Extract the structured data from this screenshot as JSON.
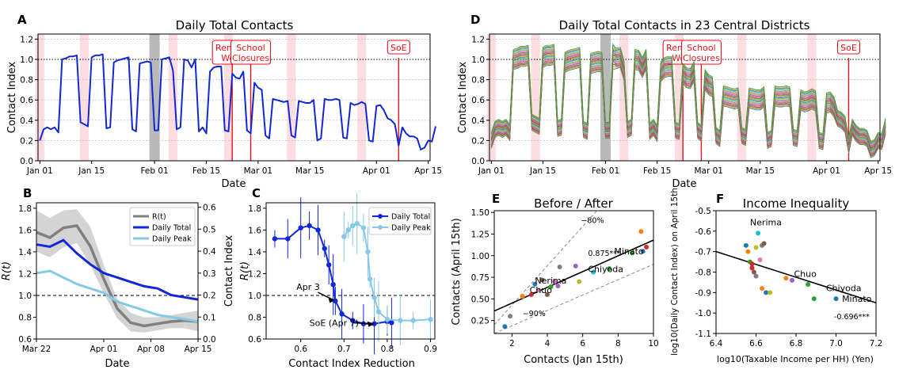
{
  "panels": {
    "A": {
      "letter": "A",
      "title": "Daily Total Contacts",
      "xlabel": "Date",
      "ylabel": "Contact Index"
    },
    "B": {
      "letter": "B",
      "xlabel": "Date",
      "ylabel": "R(t)",
      "ylabel_right": "Contact Index"
    },
    "C": {
      "letter": "C",
      "xlabel": "Contact Index Reduction",
      "ylabel": "R(t)"
    },
    "D": {
      "letter": "D",
      "title": "Daily Total Contacts in 23 Central Districts",
      "xlabel": "Date",
      "ylabel": "Contact Index"
    },
    "E": {
      "letter": "E",
      "title": "Before / After",
      "xlabel": "Contacts (Jan 15th)",
      "ylabel": "Contacts (April 15th)"
    },
    "F": {
      "letter": "F",
      "title": "Income Inequality",
      "xlabel": "log10(Taxable Income per HH) (Yen)",
      "ylabel": "log10(Daily Contact Index) on April 15th"
    }
  },
  "events": [
    {
      "label_line1": "Remote",
      "label_line2": "Work",
      "date_index": 52
    },
    {
      "label_line1": "School",
      "label_line2": "Closures",
      "date_index": 57
    },
    {
      "label_line1": "SoE",
      "label_line2": "",
      "date_index": 97
    }
  ],
  "date_ticks": [
    "Jan 01",
    "Jan 15",
    "Feb 01",
    "Feb 15",
    "Mar 01",
    "Mar 15",
    "Apr 01",
    "Apr 15"
  ],
  "date_tick_index": [
    0,
    14,
    31,
    45,
    59,
    73,
    91,
    105
  ],
  "shading": {
    "pink_index": [
      0,
      12,
      36,
      51,
      68,
      87
    ],
    "gray_index": 31
  },
  "chart_data": [
    {
      "id": "A",
      "type": "line",
      "title": "Daily Total Contacts",
      "xlabel": "Date",
      "ylabel": "Contact Index",
      "ylim": [
        0.0,
        1.25
      ],
      "yticks": [
        0.0,
        0.2,
        0.4,
        0.6,
        0.8,
        1.0,
        1.2
      ],
      "reference_line": 1.0,
      "series": [
        {
          "color": "#1028d8",
          "values": [
            0.2,
            0.31,
            0.33,
            0.31,
            0.33,
            0.28,
            1.0,
            1.01,
            1.03,
            1.03,
            1.04,
            0.38,
            0.36,
            0.34,
            1.02,
            1.04,
            1.04,
            1.05,
            0.32,
            0.33,
            0.97,
            0.99,
            1.0,
            1.01,
            1.02,
            0.31,
            0.29,
            0.96,
            0.97,
            0.98,
            0.97,
            0.3,
            0.3,
            1.0,
            1.01,
            1.02,
            0.89,
            0.31,
            0.33,
            1.0,
            0.99,
            0.92,
            1.0,
            0.29,
            0.33,
            0.27,
            0.88,
            0.92,
            0.93,
            0.93,
            0.3,
            0.29,
            0.86,
            0.82,
            0.81,
            0.88,
            0.3,
            0.27,
            0.77,
            0.72,
            0.7,
            0.25,
            0.22,
            0.61,
            0.6,
            0.59,
            0.58,
            0.59,
            0.25,
            0.23,
            0.59,
            0.58,
            0.57,
            0.57,
            0.6,
            0.2,
            0.22,
            0.61,
            0.6,
            0.6,
            0.61,
            0.6,
            0.23,
            0.22,
            0.57,
            0.55,
            0.56,
            0.58,
            0.56,
            0.2,
            0.19,
            0.54,
            0.55,
            0.5,
            0.42,
            0.4,
            0.36,
            0.15,
            0.33,
            0.27,
            0.24,
            0.24,
            0.22,
            0.11,
            0.13,
            0.2,
            0.19,
            0.34
          ]
        }
      ]
    },
    {
      "id": "D",
      "type": "line",
      "title": "Daily Total Contacts in 23 Central Districts",
      "xlabel": "Date",
      "ylabel": "Contact Index",
      "ylim": [
        0.0,
        1.25
      ],
      "yticks": [
        0.0,
        0.2,
        0.4,
        0.6,
        0.8,
        1.0,
        1.2
      ],
      "reference_line": 1.0,
      "series_count": 23
    },
    {
      "id": "B",
      "type": "line",
      "xlabel": "Date",
      "ylabel": "R(t)",
      "ylabel_right": "Contact Index",
      "ylim": [
        0.6,
        1.85
      ],
      "yticks": [
        0.6,
        0.8,
        1.0,
        1.2,
        1.4,
        1.6,
        1.8
      ],
      "y2lim": [
        0.0,
        0.62
      ],
      "y2ticks": [
        0.0,
        0.1,
        0.2,
        0.3,
        0.4,
        0.5,
        0.6
      ],
      "xticks": [
        "Mar 22",
        "Apr 01",
        "Apr 08",
        "Apr 15"
      ],
      "xtick_days": [
        0,
        10,
        17,
        24
      ],
      "reference_line": 1.0,
      "legend": [
        "R(t)",
        "Daily Total",
        "Daily Peak"
      ],
      "legend_position": "upper-right",
      "series": [
        {
          "name": "R(t)",
          "axis": "left",
          "color": "#808080",
          "x": [
            0,
            2,
            4,
            6,
            8,
            10,
            12,
            14,
            16,
            18,
            20,
            22,
            24
          ],
          "values": [
            1.58,
            1.53,
            1.62,
            1.64,
            1.45,
            1.15,
            0.88,
            0.75,
            0.72,
            0.74,
            0.76,
            0.77,
            0.76
          ],
          "band_upper": [
            1.78,
            1.71,
            1.78,
            1.79,
            1.63,
            1.28,
            0.97,
            0.84,
            0.8,
            0.8,
            0.82,
            0.84,
            0.86
          ],
          "band_lower": [
            1.4,
            1.35,
            1.44,
            1.48,
            1.28,
            1.02,
            0.79,
            0.67,
            0.66,
            0.68,
            0.7,
            0.7,
            0.67
          ]
        },
        {
          "name": "Daily Total",
          "axis": "right",
          "color": "#1028d8",
          "x": [
            0,
            2,
            4,
            6,
            8,
            10,
            12,
            14,
            16,
            18,
            20,
            22,
            24
          ],
          "values": [
            0.43,
            0.42,
            0.45,
            0.39,
            0.34,
            0.3,
            0.28,
            0.26,
            0.24,
            0.23,
            0.2,
            0.19,
            0.18
          ]
        },
        {
          "name": "Daily Peak",
          "axis": "right",
          "color": "#86c8e8",
          "x": [
            0,
            2,
            4,
            6,
            8,
            10,
            12,
            14,
            16,
            18,
            20,
            22,
            24
          ],
          "values": [
            0.3,
            0.31,
            0.28,
            0.25,
            0.23,
            0.21,
            0.17,
            0.15,
            0.13,
            0.11,
            0.1,
            0.09,
            0.08
          ]
        }
      ]
    },
    {
      "id": "C",
      "type": "line",
      "xlabel": "Contact Index Reduction",
      "ylabel": "R(t)",
      "xlim": [
        0.52,
        0.91
      ],
      "xticks": [
        0.6,
        0.7,
        0.8,
        0.9
      ],
      "ylim": [
        0.6,
        1.85
      ],
      "yticks": [
        0.6,
        0.8,
        1.0,
        1.2,
        1.4,
        1.6,
        1.8
      ],
      "reference_line": 1.0,
      "legend": [
        "Daily Total",
        "Daily Peak"
      ],
      "legend_position": "upper-right",
      "annotations": [
        {
          "text": "Apr 3",
          "x": 0.68,
          "y": 0.96
        },
        {
          "text": "SoE (Apr 7)",
          "x": 0.77,
          "y": 0.74
        }
      ],
      "series": [
        {
          "name": "Daily Total",
          "color": "#1028d8",
          "x": [
            0.54,
            0.57,
            0.6,
            0.62,
            0.64,
            0.655,
            0.665,
            0.675,
            0.68,
            0.695,
            0.72,
            0.745,
            0.77,
            0.8,
            0.81
          ],
          "values": [
            1.52,
            1.52,
            1.62,
            1.64,
            1.6,
            1.43,
            1.28,
            1.1,
            0.95,
            0.83,
            0.77,
            0.74,
            0.74,
            0.76,
            0.75
          ]
        },
        {
          "name": "Daily Peak",
          "color": "#86c8e8",
          "x": [
            0.7,
            0.71,
            0.72,
            0.73,
            0.745,
            0.755,
            0.76,
            0.77,
            0.78,
            0.8,
            0.83,
            0.86,
            0.9
          ],
          "values": [
            1.54,
            1.6,
            1.64,
            1.66,
            1.62,
            1.4,
            1.15,
            0.98,
            0.85,
            0.78,
            0.77,
            0.77,
            0.78
          ]
        }
      ]
    },
    {
      "id": "E",
      "type": "scatter",
      "title": "Before / After",
      "xlabel": "Contacts (Jan 15th)",
      "ylabel": "Contacts (April 15th)",
      "xlim": [
        1,
        10
      ],
      "xticks": [
        2,
        4,
        6,
        8,
        10
      ],
      "ylim": [
        0.1,
        1.52
      ],
      "yticks": [
        0.25,
        0.5,
        0.75,
        1.0,
        1.25,
        1.5
      ],
      "fit_label": "0.875***",
      "guide_labels": [
        "−80%",
        "−90%"
      ],
      "labels": [
        {
          "text": "Nerima",
          "x": 3.3,
          "y": 0.66
        },
        {
          "text": "Chuo",
          "x": 3.0,
          "y": 0.55
        },
        {
          "text": "Chiyoda",
          "x": 6.3,
          "y": 0.79
        },
        {
          "text": "Minato",
          "x": 9.3,
          "y": 1.0
        }
      ],
      "points": [
        [
          1.6,
          0.18,
          "#1f77b4"
        ],
        [
          1.9,
          0.3,
          "#7f7f7f"
        ],
        [
          2.6,
          0.53,
          "#ff7f0e"
        ],
        [
          3.1,
          0.55,
          "#d62728"
        ],
        [
          3.3,
          0.67,
          "#1f77b4"
        ],
        [
          3.7,
          0.72,
          "#8c564b"
        ],
        [
          4.2,
          0.64,
          "#2ca02c"
        ],
        [
          4.4,
          0.7,
          "#e377c2"
        ],
        [
          4.6,
          0.65,
          "#9467bd"
        ],
        [
          4.7,
          0.87,
          "#7f7f7f"
        ],
        [
          5.6,
          0.88,
          "#9467bd"
        ],
        [
          5.8,
          0.7,
          "#bcbd22"
        ],
        [
          6.6,
          0.81,
          "#17becf"
        ],
        [
          7.5,
          0.85,
          "#2ca02c"
        ],
        [
          9.3,
          1.28,
          "#ff7f0e"
        ],
        [
          9.6,
          1.1,
          "#d62728"
        ],
        [
          9.4,
          1.05,
          "#1f77b4"
        ],
        [
          8.8,
          1.03,
          "#2ca02c"
        ],
        [
          4.0,
          0.55,
          "#8c564b"
        ],
        [
          3.5,
          0.6,
          "#e377c2"
        ]
      ]
    },
    {
      "id": "F",
      "type": "scatter",
      "title": "Income Inequality",
      "xlabel": "log10(Taxable Income per HH) (Yen)",
      "ylabel": "log10(Daily Contact Index) on April 15th",
      "xlim": [
        6.4,
        7.2
      ],
      "xticks": [
        6.4,
        6.6,
        6.8,
        7.0,
        7.2
      ],
      "ylim": [
        -1.1,
        -0.5
      ],
      "yticks": [
        -0.5,
        -0.6,
        -0.7,
        -0.8,
        -0.9,
        -1.0,
        -1.1
      ],
      "fit_label": "-0.696***",
      "labels": [
        {
          "text": "Nerima",
          "x": 6.57,
          "y": -0.58
        },
        {
          "text": "Chuo",
          "x": 6.79,
          "y": -0.83
        },
        {
          "text": "Chiyoda",
          "x": 6.95,
          "y": -0.9
        },
        {
          "text": "Minato",
          "x": 7.03,
          "y": -0.93
        }
      ],
      "points": [
        [
          6.55,
          -0.67,
          "#1f77b4"
        ],
        [
          6.56,
          -0.7,
          "#ff7f0e"
        ],
        [
          6.57,
          -0.75,
          "#2ca02c"
        ],
        [
          6.58,
          -0.78,
          "#d62728"
        ],
        [
          6.59,
          -0.8,
          "#8c564b"
        ],
        [
          6.6,
          -0.68,
          "#bcbd22"
        ],
        [
          6.61,
          -0.61,
          "#17becf"
        ],
        [
          6.62,
          -0.74,
          "#e377c2"
        ],
        [
          6.63,
          -0.67,
          "#7f7f7f"
        ],
        [
          6.64,
          -0.66,
          "#8c564b"
        ],
        [
          6.63,
          -0.88,
          "#ff7f0e"
        ],
        [
          6.65,
          -0.9,
          "#1f77b4"
        ],
        [
          6.67,
          -0.9,
          "#bcbd22"
        ],
        [
          6.75,
          -0.83,
          "#ff7f0e"
        ],
        [
          6.78,
          -0.84,
          "#9467bd"
        ],
        [
          6.86,
          -0.86,
          "#2ca02c"
        ],
        [
          6.89,
          -0.93,
          "#2ca02c"
        ],
        [
          7.0,
          -0.93,
          "#1f77b4"
        ],
        [
          6.6,
          -0.82,
          "#7f7f7f"
        ],
        [
          6.58,
          -0.76,
          "#d62728"
        ]
      ]
    }
  ]
}
